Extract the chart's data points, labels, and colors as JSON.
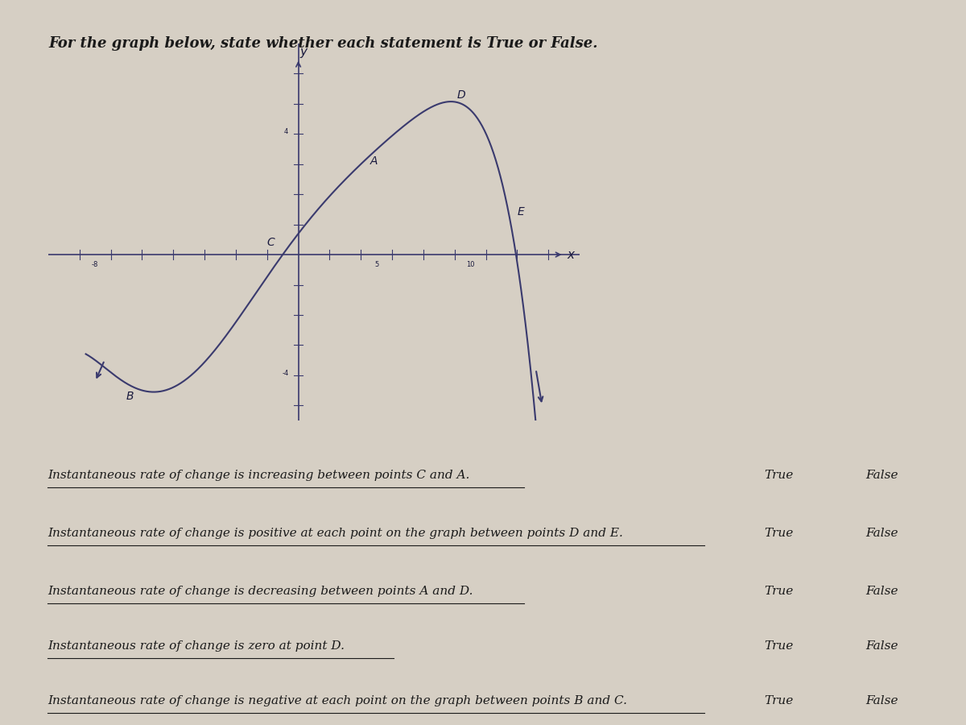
{
  "title": "For the graph below, state whether each statement is True or False.",
  "title_fontsize": 13,
  "bg_color": "#d6cfc4",
  "curve_color": "#3a3a6e",
  "axis_color": "#3a3a6e",
  "label_color": "#1a1a3e",
  "text_color": "#1a1a1a",
  "statements": [
    "Instantaneous rate of change is increasing between points C and A.",
    "Instantaneous rate of change is positive at each point on the graph between points D and E.",
    "Instantaneous rate of change is decreasing between points A and D.",
    "Instantaneous rate of change is zero at point D.",
    "Instantaneous rate of change is negative at each point on the graph between points B and C."
  ],
  "true_label": "True",
  "false_label": "False"
}
